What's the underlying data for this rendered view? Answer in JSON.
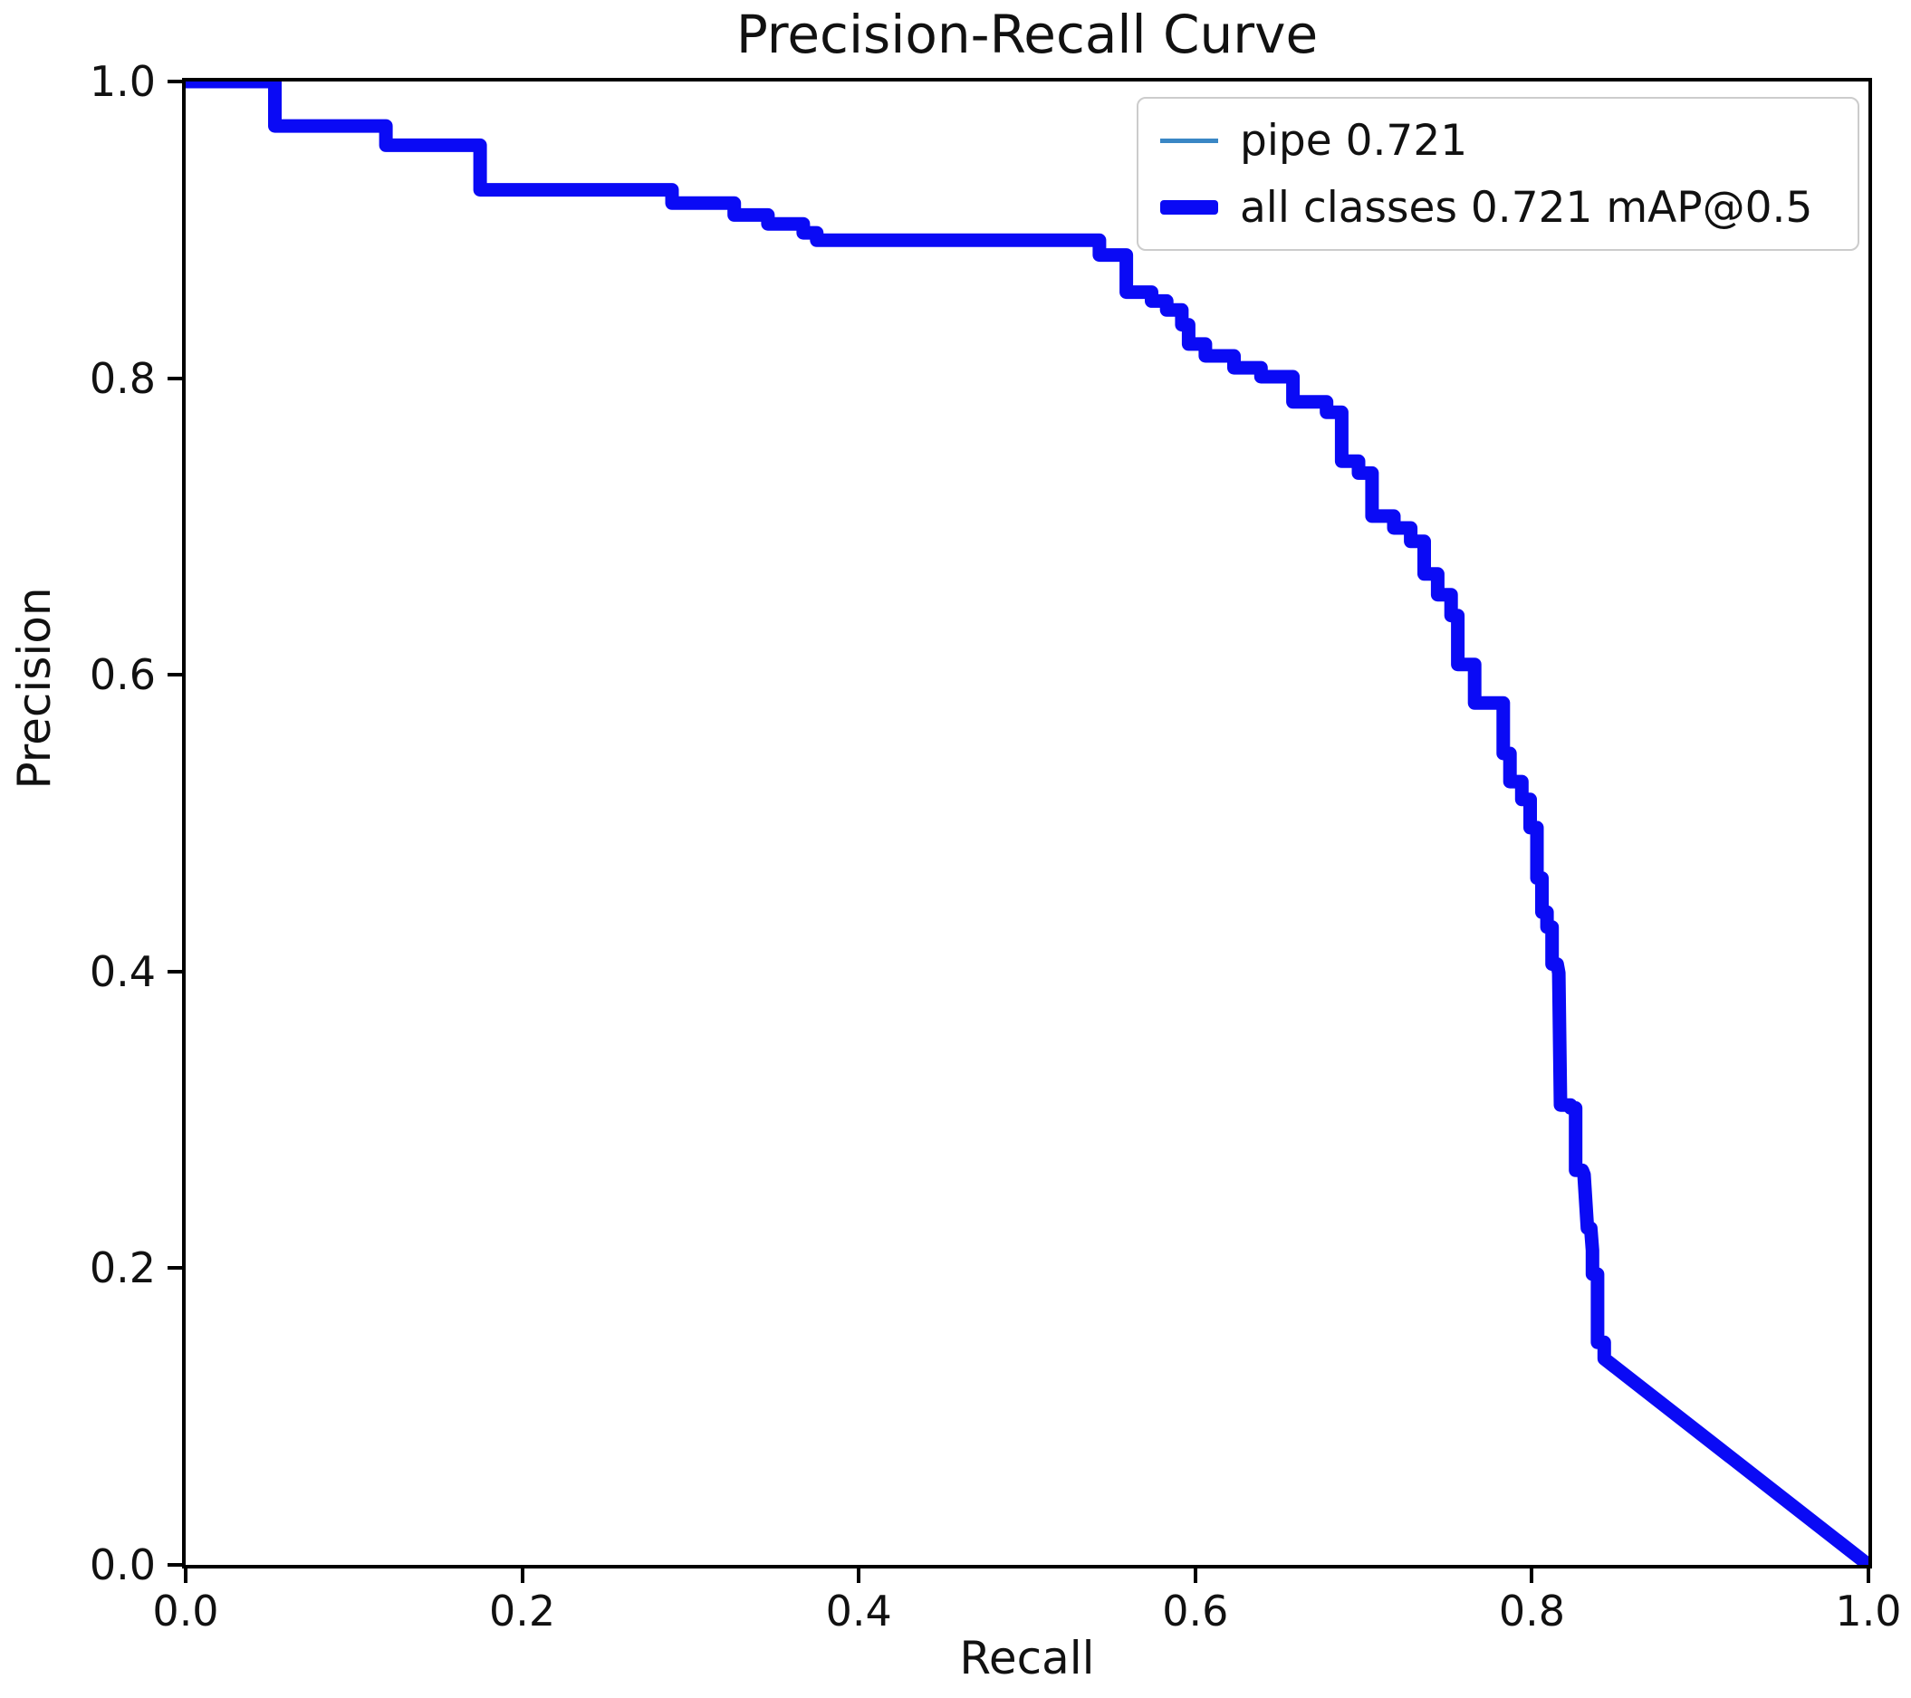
{
  "colors": {
    "curve_all_classes": "#0a0af5",
    "curve_pipe": "#3a87c5",
    "axis": "#000000",
    "legend_border": "#cccccc",
    "text": "#111111"
  },
  "chart_data": {
    "type": "line",
    "title": "Precision-Recall Curve",
    "xlabel": "Recall",
    "ylabel": "Precision",
    "xlim": [
      0.0,
      1.0
    ],
    "ylim": [
      0.0,
      1.0
    ],
    "xtick_labels": [
      "0.0",
      "0.2",
      "0.4",
      "0.6",
      "0.8",
      "1.0"
    ],
    "ytick_labels": [
      "0.0",
      "0.2",
      "0.4",
      "0.6",
      "0.8",
      "1.0"
    ],
    "grid": false,
    "legend_position": "upper right",
    "series": [
      {
        "label": "pipe 0.721",
        "color": "#3a87c5",
        "line_width": "thin"
      },
      {
        "label": "all classes 0.721 mAP@0.5",
        "color": "#0a0af5",
        "line_width": "thick"
      }
    ],
    "points": [
      [
        0.0,
        1.0
      ],
      [
        0.053,
        1.0
      ],
      [
        0.053,
        0.97
      ],
      [
        0.119,
        0.97
      ],
      [
        0.119,
        0.957
      ],
      [
        0.175,
        0.957
      ],
      [
        0.175,
        0.927
      ],
      [
        0.289,
        0.927
      ],
      [
        0.289,
        0.918
      ],
      [
        0.326,
        0.918
      ],
      [
        0.326,
        0.91
      ],
      [
        0.346,
        0.91
      ],
      [
        0.346,
        0.904
      ],
      [
        0.367,
        0.904
      ],
      [
        0.367,
        0.898
      ],
      [
        0.375,
        0.898
      ],
      [
        0.375,
        0.893
      ],
      [
        0.543,
        0.893
      ],
      [
        0.543,
        0.883
      ],
      [
        0.559,
        0.883
      ],
      [
        0.559,
        0.858
      ],
      [
        0.574,
        0.858
      ],
      [
        0.574,
        0.852
      ],
      [
        0.583,
        0.852
      ],
      [
        0.583,
        0.846
      ],
      [
        0.592,
        0.846
      ],
      [
        0.592,
        0.836
      ],
      [
        0.596,
        0.836
      ],
      [
        0.596,
        0.823
      ],
      [
        0.606,
        0.823
      ],
      [
        0.606,
        0.815
      ],
      [
        0.623,
        0.815
      ],
      [
        0.623,
        0.807
      ],
      [
        0.639,
        0.807
      ],
      [
        0.639,
        0.801
      ],
      [
        0.658,
        0.801
      ],
      [
        0.658,
        0.784
      ],
      [
        0.678,
        0.784
      ],
      [
        0.678,
        0.777
      ],
      [
        0.687,
        0.777
      ],
      [
        0.687,
        0.744
      ],
      [
        0.697,
        0.744
      ],
      [
        0.697,
        0.736
      ],
      [
        0.705,
        0.736
      ],
      [
        0.705,
        0.707
      ],
      [
        0.718,
        0.707
      ],
      [
        0.718,
        0.699
      ],
      [
        0.728,
        0.699
      ],
      [
        0.728,
        0.69
      ],
      [
        0.736,
        0.69
      ],
      [
        0.736,
        0.668
      ],
      [
        0.744,
        0.668
      ],
      [
        0.744,
        0.654
      ],
      [
        0.752,
        0.654
      ],
      [
        0.752,
        0.64
      ],
      [
        0.756,
        0.64
      ],
      [
        0.756,
        0.607
      ],
      [
        0.766,
        0.607
      ],
      [
        0.766,
        0.581
      ],
      [
        0.783,
        0.581
      ],
      [
        0.783,
        0.547
      ],
      [
        0.787,
        0.547
      ],
      [
        0.787,
        0.528
      ],
      [
        0.794,
        0.528
      ],
      [
        0.794,
        0.516
      ],
      [
        0.799,
        0.516
      ],
      [
        0.799,
        0.497
      ],
      [
        0.803,
        0.497
      ],
      [
        0.803,
        0.463
      ],
      [
        0.806,
        0.463
      ],
      [
        0.806,
        0.44
      ],
      [
        0.809,
        0.44
      ],
      [
        0.809,
        0.43
      ],
      [
        0.812,
        0.43
      ],
      [
        0.812,
        0.405
      ],
      [
        0.815,
        0.405
      ],
      [
        0.816,
        0.399
      ],
      [
        0.817,
        0.31
      ],
      [
        0.823,
        0.31
      ],
      [
        0.823,
        0.308
      ],
      [
        0.826,
        0.308
      ],
      [
        0.826,
        0.266
      ],
      [
        0.83,
        0.266
      ],
      [
        0.831,
        0.263
      ],
      [
        0.833,
        0.227
      ],
      [
        0.835,
        0.227
      ],
      [
        0.836,
        0.212
      ],
      [
        0.836,
        0.196
      ],
      [
        0.839,
        0.196
      ],
      [
        0.839,
        0.15
      ],
      [
        0.843,
        0.15
      ],
      [
        0.843,
        0.139
      ],
      [
        1.0,
        0.0
      ]
    ]
  }
}
